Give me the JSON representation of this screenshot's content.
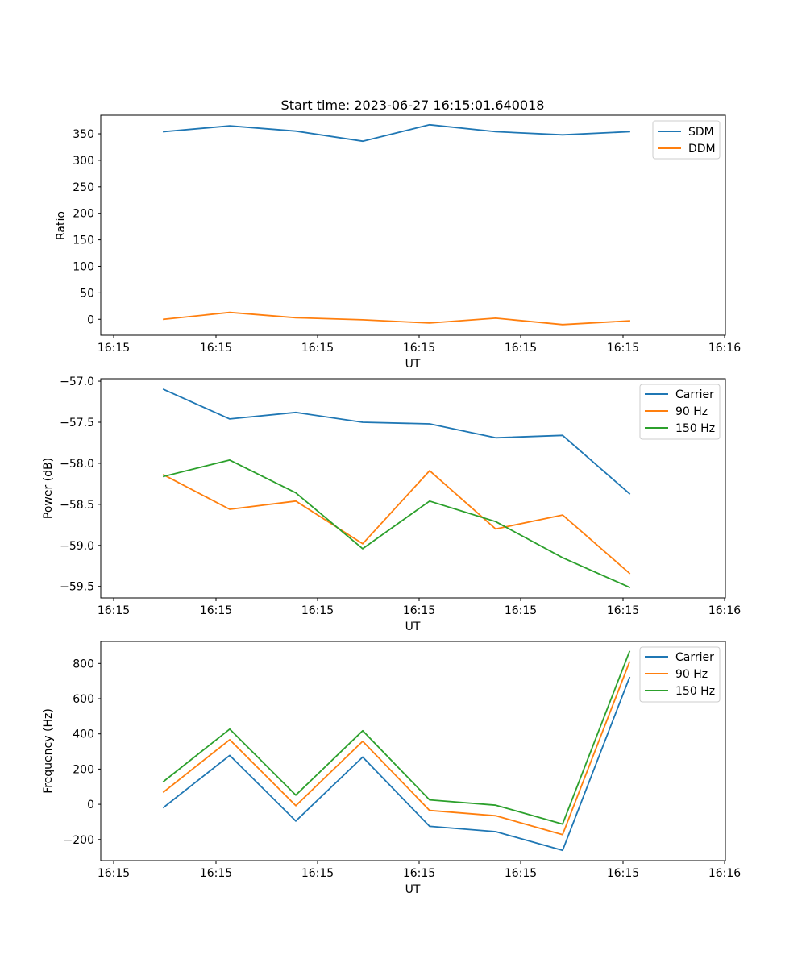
{
  "chart_data": [
    {
      "type": "line",
      "title": "Start time: 2023-06-27 16:15:01.640018",
      "xlabel": "UT",
      "ylabel": "Ratio",
      "x_ticks": [
        "16:15",
        "16:15",
        "16:15",
        "16:15",
        "16:15",
        "16:15",
        "16:16"
      ],
      "y_ticks": [
        "0",
        "50",
        "100",
        "150",
        "200",
        "250",
        "300",
        "350"
      ],
      "ylim": [
        -30,
        385
      ],
      "legend_position": "upper right",
      "grid": false,
      "series": [
        {
          "name": "SDM",
          "color": "#1f77b4",
          "values": [
            354,
            365,
            355,
            336,
            367,
            354,
            348,
            354
          ]
        },
        {
          "name": "DDM",
          "color": "#ff7f0e",
          "values": [
            0,
            13,
            3,
            -1,
            -7,
            2,
            -10,
            -3
          ]
        }
      ]
    },
    {
      "type": "line",
      "title": "",
      "xlabel": "UT",
      "ylabel": "Power (dB)",
      "x_ticks": [
        "16:15",
        "16:15",
        "16:15",
        "16:15",
        "16:15",
        "16:15",
        "16:16"
      ],
      "y_ticks": [
        "−59.5",
        "−59.0",
        "−58.5",
        "−58.0",
        "−57.5",
        "−57.0"
      ],
      "ylim": [
        -59.64,
        -56.97
      ],
      "legend_position": "upper right",
      "grid": false,
      "series": [
        {
          "name": "Carrier",
          "color": "#1f77b4",
          "values": [
            -57.1,
            -57.46,
            -57.38,
            -57.5,
            -57.52,
            -57.69,
            -57.66,
            -58.37
          ]
        },
        {
          "name": "90 Hz",
          "color": "#ff7f0e",
          "values": [
            -58.14,
            -58.56,
            -58.46,
            -58.98,
            -58.09,
            -58.8,
            -58.63,
            -59.34
          ]
        },
        {
          "name": "150 Hz",
          "color": "#2ca02c",
          "values": [
            -58.16,
            -57.96,
            -58.36,
            -59.04,
            -58.46,
            -58.71,
            -59.15,
            -59.51
          ]
        }
      ]
    },
    {
      "type": "line",
      "title": "",
      "xlabel": "UT",
      "ylabel": "Frequency (Hz)",
      "x_ticks": [
        "16:15",
        "16:15",
        "16:15",
        "16:15",
        "16:15",
        "16:15",
        "16:16"
      ],
      "y_ticks": [
        "−200",
        "0",
        "200",
        "400",
        "600",
        "800"
      ],
      "ylim": [
        -320,
        925
      ],
      "legend_position": "upper right",
      "grid": false,
      "series": [
        {
          "name": "Carrier",
          "color": "#1f77b4",
          "values": [
            -18,
            278,
            -95,
            268,
            -125,
            -155,
            -262,
            720
          ]
        },
        {
          "name": "90 Hz",
          "color": "#ff7f0e",
          "values": [
            70,
            367,
            -8,
            358,
            -35,
            -65,
            -172,
            808
          ]
        },
        {
          "name": "150 Hz",
          "color": "#2ca02c",
          "values": [
            130,
            427,
            52,
            418,
            25,
            -5,
            -112,
            868
          ]
        }
      ]
    }
  ]
}
